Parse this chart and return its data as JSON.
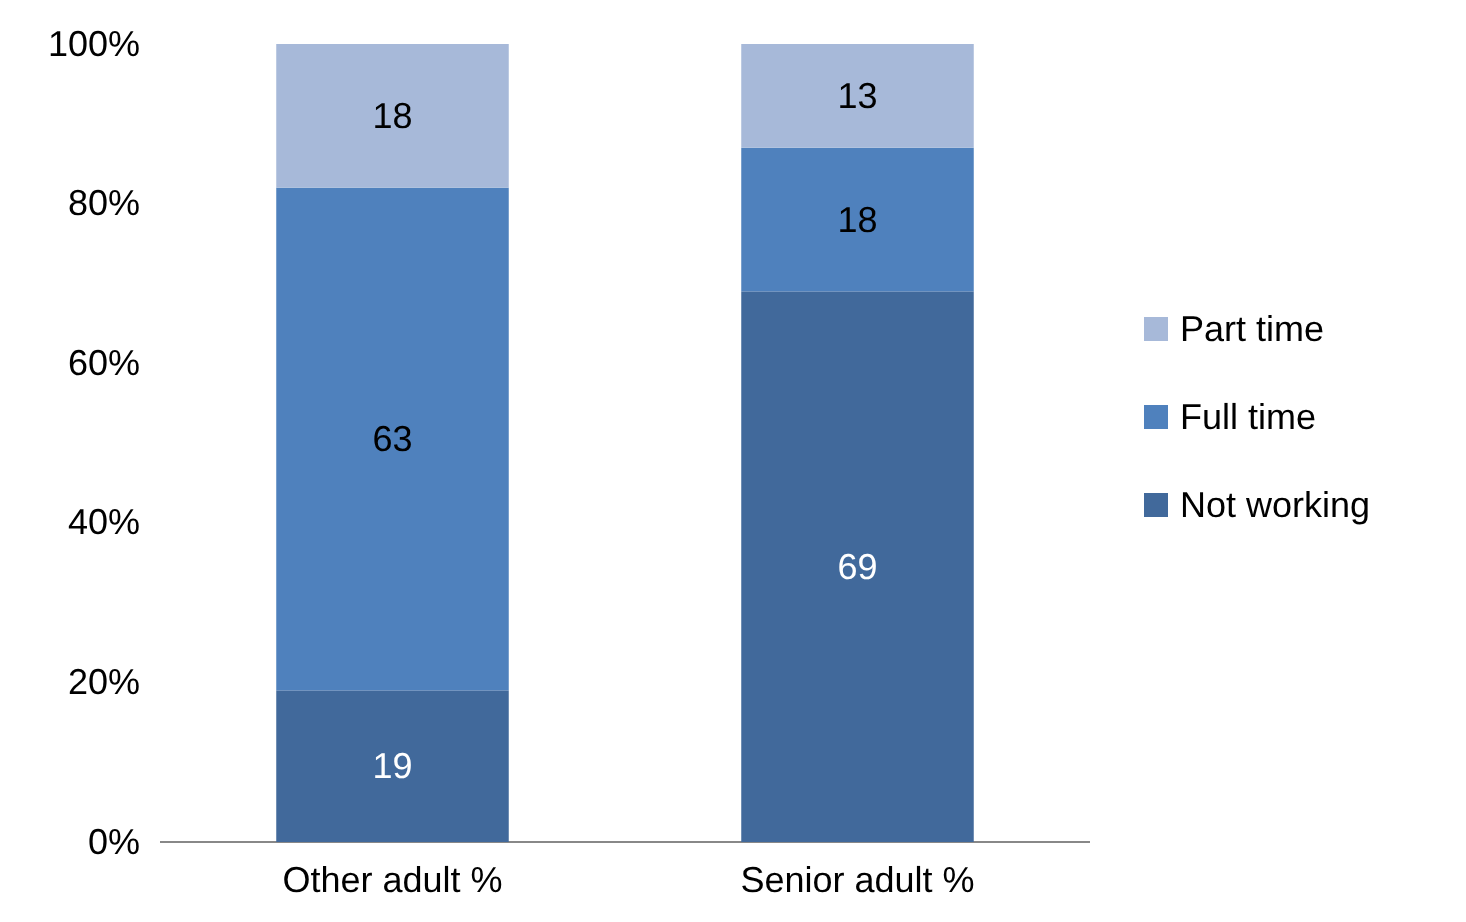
{
  "chart_data": {
    "type": "bar",
    "stacked": true,
    "categories": [
      "Other adult %",
      "Senior adult %"
    ],
    "series": [
      {
        "name": "Not working",
        "color": "#41699b",
        "values": [
          19,
          69
        ]
      },
      {
        "name": "Full time",
        "color": "#4f81bd",
        "values": [
          63,
          18
        ]
      },
      {
        "name": "Part time",
        "color": "#a7b9d9",
        "values": [
          18,
          13
        ]
      }
    ],
    "ylim": [
      0,
      100
    ],
    "yticks": [
      {
        "value": 0,
        "label": "0%"
      },
      {
        "value": 20,
        "label": "20%"
      },
      {
        "value": 40,
        "label": "40%"
      },
      {
        "value": 60,
        "label": "60%"
      },
      {
        "value": 80,
        "label": "80%"
      },
      {
        "value": 100,
        "label": "100%"
      }
    ],
    "data_labels": true,
    "legend": "right",
    "grid": false
  }
}
